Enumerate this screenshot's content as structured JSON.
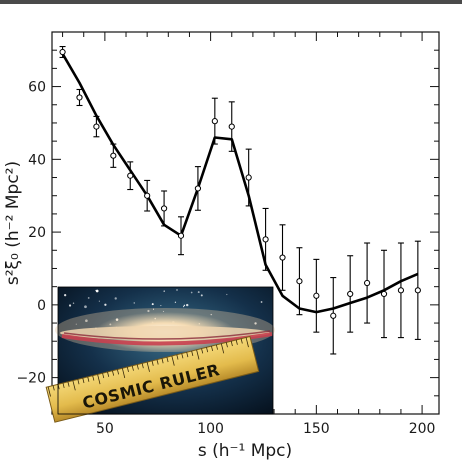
{
  "chart_data": {
    "type": "line",
    "title": "",
    "xlabel": "s (h⁻¹ Mpc)",
    "ylabel": "s²ξ₀ (h⁻² Mpc²)",
    "xlim": [
      25,
      208
    ],
    "ylim": [
      -30,
      75
    ],
    "x_ticks": [
      50,
      100,
      150,
      200
    ],
    "y_ticks": [
      -20,
      0,
      20,
      40,
      60
    ],
    "grid": false,
    "legend": "none",
    "series": [
      {
        "kind": "model-line",
        "color": "#000000",
        "x": [
          30,
          38,
          46,
          54,
          62,
          70,
          78,
          86,
          94,
          102,
          110,
          118,
          126,
          134,
          142,
          150,
          158,
          166,
          174,
          182,
          190,
          198
        ],
        "y": [
          69,
          61,
          52,
          44,
          37,
          30,
          22,
          19,
          32,
          46,
          45.5,
          30,
          11,
          2.5,
          -1,
          -2,
          -1,
          0.5,
          2,
          4,
          6.5,
          8.5
        ]
      },
      {
        "kind": "data-points",
        "color": "#000000",
        "x": [
          30,
          38,
          46,
          54,
          62,
          70,
          78,
          86,
          94,
          102,
          110,
          118,
          126,
          134,
          142,
          150,
          158,
          166,
          174,
          182,
          190,
          198
        ],
        "y": [
          69.5,
          57,
          49,
          41,
          35.5,
          30,
          26.5,
          19,
          32,
          50.5,
          49,
          35,
          18,
          13,
          6.5,
          2.5,
          -3,
          3,
          6,
          3,
          4,
          4
        ],
        "err": [
          1.5,
          2.2,
          2.8,
          3.2,
          3.8,
          4.2,
          4.8,
          5.2,
          6,
          6.3,
          6.8,
          7.8,
          8.5,
          9,
          9.2,
          10,
          10.5,
          10.5,
          11,
          12,
          13,
          13.5
        ]
      }
    ]
  },
  "inset_image": {
    "description_icon": "sombrero-galaxy-with-ruler-image",
    "ruler_text": "COSMIC RULER",
    "colors": {
      "space": "#0b1a2a",
      "galaxy_glow": "#f3d9b0",
      "dust_lane": "#d14a5a",
      "ruler": "#e8c45a",
      "ruler_edge": "#8a6a1e",
      "ruler_text": "#1a1608"
    }
  }
}
